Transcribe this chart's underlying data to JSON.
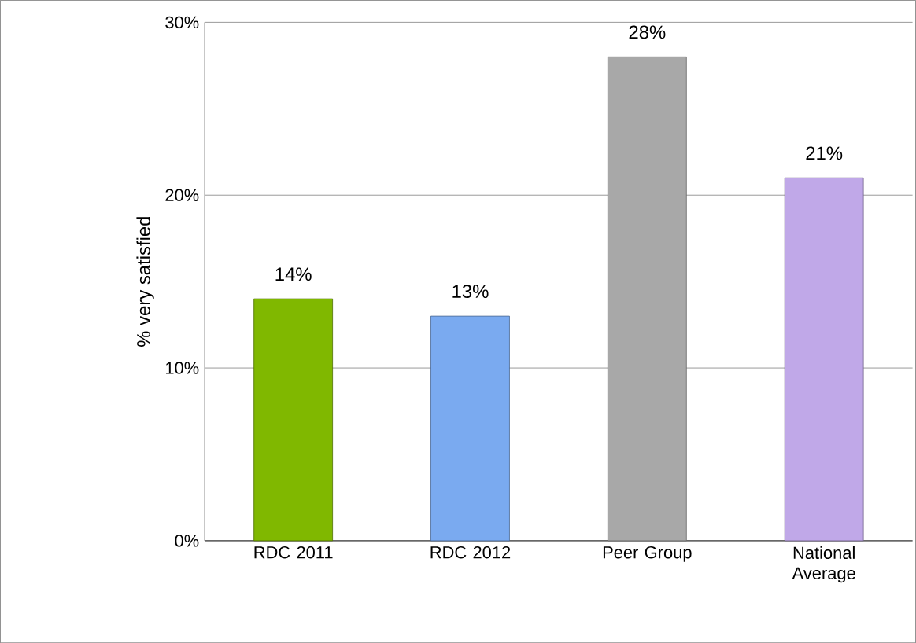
{
  "chart_data": {
    "type": "bar",
    "ylabel": "% very satisfied",
    "categories": [
      "RDC 2011",
      "RDC 2012",
      "Peer Group",
      "National Average"
    ],
    "values": [
      14,
      13,
      28,
      21
    ],
    "colors": [
      "#80b800",
      "#7aaaf0",
      "#a8a8a8",
      "#c0a8e8"
    ],
    "value_labels": [
      "14%",
      "13%",
      "28%",
      "21%"
    ],
    "ylim": [
      0,
      30
    ],
    "yticks": [
      {
        "value": 0,
        "label": "0%"
      },
      {
        "value": 10,
        "label": "10%"
      },
      {
        "value": 20,
        "label": "20%"
      },
      {
        "value": 30,
        "label": "30%"
      }
    ],
    "grid": "y"
  }
}
